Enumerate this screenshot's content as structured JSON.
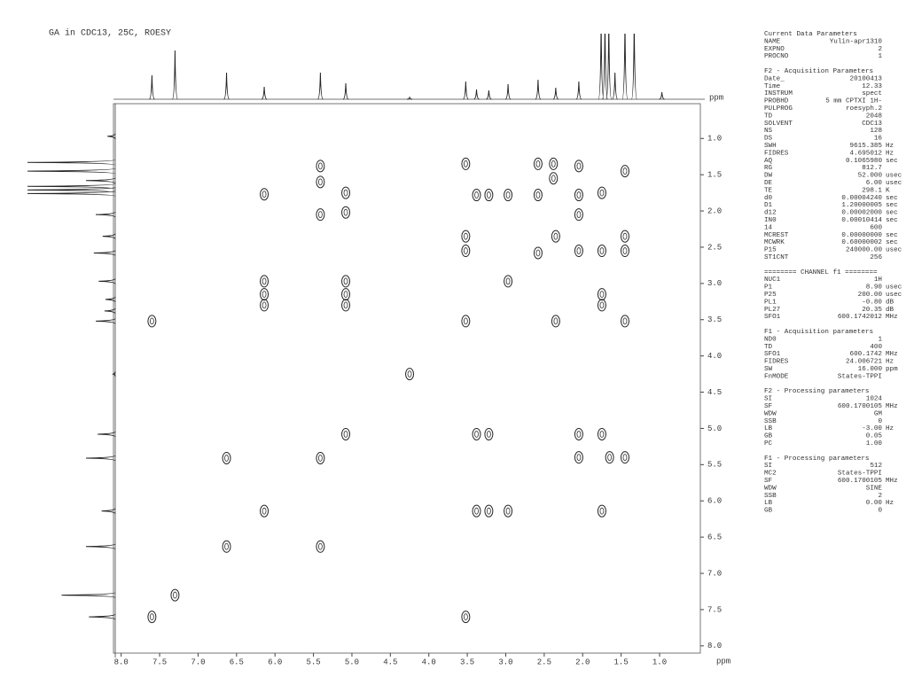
{
  "chart_data": {
    "type": "nmr2d",
    "title": "GA in CDC13, 25C, ROESY",
    "x_label": "ppm",
    "y_label": "ppm",
    "xlim": [
      8.1,
      0.47
    ],
    "ylim": [
      0.52,
      8.1
    ],
    "xticks": [
      {
        "value": 8,
        "label": "8.0"
      },
      7.5,
      {
        "value": 7,
        "label": "7.0"
      },
      6.5,
      {
        "value": 6,
        "label": "6.0"
      },
      5.5,
      {
        "value": 5,
        "label": "5.0"
      },
      4.5,
      {
        "value": 4,
        "label": "4.0"
      },
      3.5,
      {
        "value": 3,
        "label": "3.0"
      },
      2.5,
      {
        "value": 2,
        "label": "2.0"
      },
      1.5,
      {
        "value": 1,
        "label": "1.0"
      }
    ],
    "yticks": [
      {
        "value": 1,
        "label": "1.0"
      },
      1.5,
      {
        "value": 2,
        "label": "2.0"
      },
      2.5,
      {
        "value": 3,
        "label": "3.0"
      },
      3.5,
      {
        "value": 4,
        "label": "4.0"
      },
      4.5,
      {
        "value": 5,
        "label": "5.0"
      },
      5.5,
      {
        "value": 6,
        "label": "6.0"
      },
      6.5,
      {
        "value": 7,
        "label": "7.0"
      },
      7.5,
      {
        "value": 8,
        "label": "8.0"
      }
    ],
    "x": [
      5.41,
      5.41,
      5.41,
      6.14,
      5.08,
      5.08,
      3.52,
      3.38,
      3.22,
      2.97,
      2.58,
      2.58,
      2.38,
      2.38,
      2.05,
      2.05,
      6.14,
      6.14,
      6.14,
      5.08,
      5.08,
      5.08,
      7.6,
      3.52,
      3.52,
      2.05,
      1.75,
      1.45,
      1.45,
      1.75,
      1.75,
      2.35,
      1.45,
      3.38,
      3.22,
      2.05,
      1.75,
      2.05,
      1.65,
      1.45,
      6.63,
      3.38,
      3.22,
      2.97,
      1.75,
      5.41,
      3.52,
      7.6,
      7.3,
      6.63,
      6.14,
      5.41,
      5.08,
      4.25,
      3.52,
      2.97,
      2.58,
      2.35,
      2.05,
      1.75,
      1.45
    ],
    "values": [
      1.38,
      1.6,
      2.05,
      1.77,
      1.75,
      2.02,
      1.35,
      1.78,
      1.78,
      1.78,
      1.35,
      1.78,
      1.35,
      1.55,
      1.38,
      1.78,
      2.97,
      3.15,
      3.3,
      2.97,
      3.15,
      3.3,
      3.52,
      2.35,
      2.55,
      2.55,
      2.55,
      2.35,
      2.55,
      3.15,
      3.3,
      3.52,
      3.52,
      5.08,
      5.08,
      5.08,
      5.08,
      5.4,
      5.4,
      5.4,
      5.41,
      6.14,
      6.14,
      6.14,
      6.14,
      6.63,
      7.6,
      7.6,
      7.3,
      6.63,
      6.14,
      5.41,
      5.08,
      4.25,
      3.52,
      2.97,
      2.58,
      2.35,
      2.05,
      1.75,
      1.45
    ],
    "projection": {
      "x": [
        7.6,
        7.3,
        6.63,
        6.14,
        5.41,
        5.08,
        4.25,
        3.52,
        3.38,
        3.22,
        2.97,
        2.58,
        2.35,
        2.05,
        1.76,
        1.71,
        1.66,
        1.58,
        1.45,
        1.33,
        0.97
      ],
      "values": [
        27,
        55,
        30,
        14,
        30,
        18,
        2,
        20,
        11,
        10,
        17,
        22,
        13,
        20,
        90,
        90,
        90,
        30,
        90,
        90,
        8
      ]
    }
  },
  "parameters": [
    {
      "title": "Current Data Parameters",
      "rows": [
        [
          "NAME",
          "Yulin-apr1310"
        ],
        [
          "EXPNO",
          "2"
        ],
        [
          "PROCNO",
          "1"
        ]
      ]
    },
    {
      "title": "F2 - Acquisition Parameters",
      "rows": [
        [
          "Date_",
          "20100413"
        ],
        [
          "Time",
          "12.33"
        ],
        [
          "INSTRUM",
          "spect"
        ],
        [
          "PROBHD",
          "5 mm CPTXI 1H-"
        ],
        [
          "PULPROG",
          "roesyph.2"
        ],
        [
          "TD",
          "2048"
        ],
        [
          "SOLVENT",
          "CDC13"
        ],
        [
          "NS",
          "128"
        ],
        [
          "DS",
          "16"
        ],
        [
          "SWH",
          "9615.385",
          "Hz"
        ],
        [
          "FIDRES",
          "4.695012",
          "Hz"
        ],
        [
          "AQ",
          "0.1065980",
          "sec"
        ],
        [
          "RG",
          "812.7"
        ],
        [
          "DW",
          "52.000",
          "usec"
        ],
        [
          "DE",
          "6.00",
          "usec"
        ],
        [
          "TE",
          "298.1",
          "K"
        ],
        [
          "d0",
          "0.00004240",
          "sec"
        ],
        [
          "D1",
          "1.20000005",
          "sec"
        ],
        [
          "d12",
          "0.00002000",
          "sec"
        ],
        [
          "IN0",
          "0.00010414",
          "sec"
        ],
        [
          "14",
          "600"
        ],
        [
          "MCREST",
          "0.00000000",
          "sec"
        ],
        [
          "MCWRK",
          "0.60000002",
          "sec"
        ],
        [
          "P15",
          "240000.00",
          "usec"
        ],
        [
          "ST1CNT",
          "256"
        ]
      ]
    },
    {
      "title": "======== CHANNEL f1 ========",
      "rows": [
        [
          "NUC1",
          "1H"
        ],
        [
          "P1",
          "8.90",
          "usec"
        ],
        [
          "P25",
          "200.00",
          "usec"
        ],
        [
          "PL1",
          "-0.80",
          "dB"
        ],
        [
          "PL27",
          "20.35",
          "dB"
        ],
        [
          "SFO1",
          "600.1742012",
          "MHz"
        ]
      ]
    },
    {
      "title": "F1 - Acquisition parameters",
      "rows": [
        [
          "ND0",
          "1"
        ],
        [
          "TD",
          "400"
        ],
        [
          "SFO1",
          "600.1742",
          "MHz"
        ],
        [
          "FIDRES",
          "24.006721",
          "Hz"
        ],
        [
          "SW",
          "16.000",
          "ppm"
        ],
        [
          "FnMODE",
          "States-TPPI"
        ]
      ]
    },
    {
      "title": "F2 - Processing parameters",
      "rows": [
        [
          "SI",
          "1024"
        ],
        [
          "SF",
          "600.1700105",
          "MHz"
        ],
        [
          "WDW",
          "GM"
        ],
        [
          "SSB",
          "0"
        ],
        [
          "LB",
          "-3.00",
          "Hz"
        ],
        [
          "GB",
          "0.05"
        ],
        [
          "PC",
          "1.00"
        ]
      ]
    },
    {
      "title": "F1 - Processing parameters",
      "rows": [
        [
          "SI",
          "512"
        ],
        [
          "MC2",
          "States-TPPI"
        ],
        [
          "SF",
          "600.1700105",
          "MHz"
        ],
        [
          "WDW",
          "SINE"
        ],
        [
          "SSB",
          "2"
        ],
        [
          "LB",
          "0.00",
          "Hz"
        ],
        [
          "GB",
          "0"
        ]
      ]
    }
  ]
}
